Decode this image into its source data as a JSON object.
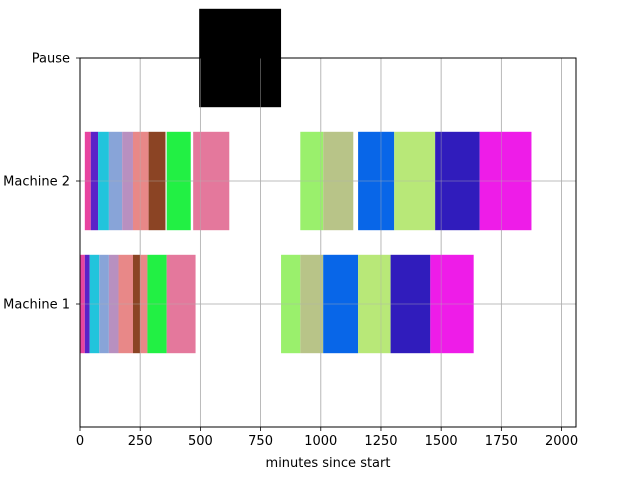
{
  "chart_data": {
    "type": "bar",
    "orientation": "horizontal",
    "title": "",
    "xlabel": "minutes since start",
    "ylabel": "",
    "xlim": [
      0,
      2060
    ],
    "ylim": [
      -1,
      2
    ],
    "grid": true,
    "x_ticks": [
      0,
      250,
      500,
      750,
      1000,
      1250,
      1500,
      1750,
      2000
    ],
    "categories": [
      "Machine 1",
      "Machine 2",
      "Pause"
    ],
    "bars": [
      {
        "row": "Machine 1",
        "start": 0,
        "end": 20,
        "color": "#e844a0"
      },
      {
        "row": "Machine 1",
        "start": 20,
        "end": 40,
        "color": "#5b22c8"
      },
      {
        "row": "Machine 1",
        "start": 40,
        "end": 80,
        "color": "#22c4dc"
      },
      {
        "row": "Machine 1",
        "start": 80,
        "end": 120,
        "color": "#88a4d8"
      },
      {
        "row": "Machine 1",
        "start": 120,
        "end": 160,
        "color": "#b890c0"
      },
      {
        "row": "Machine 1",
        "start": 160,
        "end": 220,
        "color": "#e88888"
      },
      {
        "row": "Machine 1",
        "start": 220,
        "end": 250,
        "color": "#8b4424"
      },
      {
        "row": "Machine 1",
        "start": 250,
        "end": 280,
        "color": "#e88888"
      },
      {
        "row": "Machine 1",
        "start": 280,
        "end": 360,
        "color": "#22f044"
      },
      {
        "row": "Machine 1",
        "start": 360,
        "end": 480,
        "color": "#e4789c"
      },
      {
        "row": "Machine 1",
        "start": 835,
        "end": 915,
        "color": "#9af06c"
      },
      {
        "row": "Machine 1",
        "start": 915,
        "end": 1010,
        "color": "#b8c488"
      },
      {
        "row": "Machine 1",
        "start": 1010,
        "end": 1155,
        "color": "#0866e8"
      },
      {
        "row": "Machine 1",
        "start": 1155,
        "end": 1290,
        "color": "#b8e878"
      },
      {
        "row": "Machine 1",
        "start": 1290,
        "end": 1455,
        "color": "#301cbc"
      },
      {
        "row": "Machine 1",
        "start": 1455,
        "end": 1635,
        "color": "#ee1ce8"
      },
      {
        "row": "Machine 2",
        "start": 20,
        "end": 45,
        "color": "#e844a0"
      },
      {
        "row": "Machine 2",
        "start": 45,
        "end": 75,
        "color": "#5b22c8"
      },
      {
        "row": "Machine 2",
        "start": 75,
        "end": 120,
        "color": "#22c4dc"
      },
      {
        "row": "Machine 2",
        "start": 120,
        "end": 175,
        "color": "#88a4d8"
      },
      {
        "row": "Machine 2",
        "start": 175,
        "end": 220,
        "color": "#b890c0"
      },
      {
        "row": "Machine 2",
        "start": 220,
        "end": 285,
        "color": "#e88888"
      },
      {
        "row": "Machine 2",
        "start": 285,
        "end": 355,
        "color": "#8b4424"
      },
      {
        "row": "Machine 2",
        "start": 360,
        "end": 460,
        "color": "#22f044"
      },
      {
        "row": "Machine 2",
        "start": 470,
        "end": 620,
        "color": "#e4789c"
      },
      {
        "row": "Machine 2",
        "start": 915,
        "end": 1010,
        "color": "#9af06c"
      },
      {
        "row": "Machine 2",
        "start": 1010,
        "end": 1135,
        "color": "#b8c488"
      },
      {
        "row": "Machine 2",
        "start": 1155,
        "end": 1305,
        "color": "#0866e8"
      },
      {
        "row": "Machine 2",
        "start": 1305,
        "end": 1475,
        "color": "#b8e878"
      },
      {
        "row": "Machine 2",
        "start": 1475,
        "end": 1660,
        "color": "#301cbc"
      },
      {
        "row": "Machine 2",
        "start": 1660,
        "end": 1875,
        "color": "#ee1ce8"
      },
      {
        "row": "Pause",
        "start": 495,
        "end": 835,
        "color": "#000000"
      }
    ]
  }
}
